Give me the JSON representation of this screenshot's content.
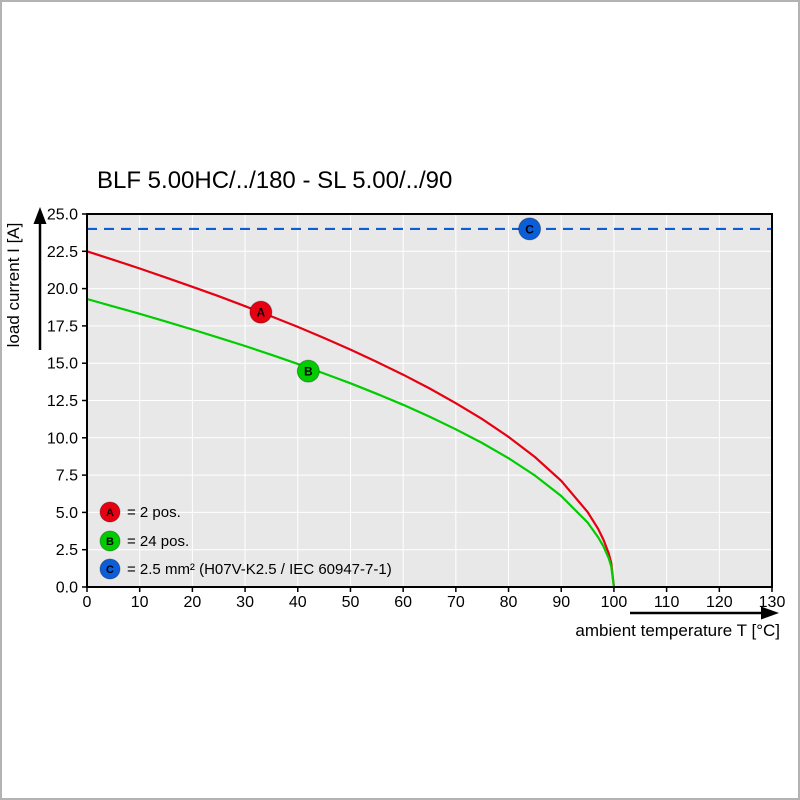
{
  "window": {
    "background": "#ffffff",
    "border_color": "#b3b3b3"
  },
  "chart_data": {
    "type": "line",
    "title": "BLF 5.00HC/../180 - SL 5.00/../90",
    "xlabel": "ambient temperature T [°C]",
    "ylabel": "load current I [A]",
    "xlim": [
      0,
      130
    ],
    "ylim": [
      0,
      25
    ],
    "x_ticks": [
      0,
      10,
      20,
      30,
      40,
      50,
      60,
      70,
      80,
      90,
      100,
      110,
      120,
      130
    ],
    "y_tick_values": [
      0,
      2.5,
      5,
      7.5,
      10,
      12.5,
      15,
      17.5,
      20,
      22.5,
      25
    ],
    "y_tick_labels": [
      "0.0",
      "2.5",
      "5.0",
      "7.5",
      "10.0",
      "12.5",
      "15.0",
      "17.5",
      "20.0",
      "22.5",
      "25.0"
    ],
    "grid": true,
    "plot_background": "#e8e8e8",
    "grid_color": "#ffffff",
    "axis_color": "#000000",
    "legend_position": "bottom-left-inside",
    "series": [
      {
        "id": "A",
        "legend_label": "= 2 pos.",
        "color": "#e60012",
        "style": "solid",
        "points": [
          [
            0,
            22.5
          ],
          [
            5,
            21.93
          ],
          [
            10,
            21.35
          ],
          [
            15,
            20.74
          ],
          [
            20,
            20.12
          ],
          [
            25,
            19.49
          ],
          [
            30,
            18.82
          ],
          [
            35,
            18.14
          ],
          [
            40,
            17.43
          ],
          [
            45,
            16.69
          ],
          [
            50,
            15.91
          ],
          [
            55,
            15.09
          ],
          [
            60,
            14.23
          ],
          [
            65,
            13.31
          ],
          [
            70,
            12.32
          ],
          [
            75,
            11.25
          ],
          [
            80,
            10.06
          ],
          [
            85,
            8.71
          ],
          [
            90,
            7.12
          ],
          [
            95,
            5.03
          ],
          [
            97,
            3.9
          ],
          [
            98,
            3.18
          ],
          [
            99,
            2.25
          ],
          [
            99.5,
            1.59
          ],
          [
            100,
            0
          ]
        ]
      },
      {
        "id": "B",
        "legend_label": "= 24 pos.",
        "color": "#00cc00",
        "style": "solid",
        "points": [
          [
            0,
            19.3
          ],
          [
            5,
            18.81
          ],
          [
            10,
            18.31
          ],
          [
            15,
            17.79
          ],
          [
            20,
            17.26
          ],
          [
            25,
            16.71
          ],
          [
            30,
            16.15
          ],
          [
            35,
            15.56
          ],
          [
            40,
            14.95
          ],
          [
            45,
            14.31
          ],
          [
            50,
            13.65
          ],
          [
            55,
            12.95
          ],
          [
            60,
            12.21
          ],
          [
            65,
            11.42
          ],
          [
            70,
            10.57
          ],
          [
            75,
            9.65
          ],
          [
            80,
            8.63
          ],
          [
            85,
            7.47
          ],
          [
            90,
            6.1
          ],
          [
            95,
            4.32
          ],
          [
            97,
            3.34
          ],
          [
            98,
            2.73
          ],
          [
            99,
            1.93
          ],
          [
            99.5,
            1.36
          ],
          [
            100,
            0
          ]
        ]
      },
      {
        "id": "C",
        "legend_label": "= 2.5 mm² (H07V-K2.5 / IEC 60947-7-1)",
        "color": "#0b5ed7",
        "style": "dashed",
        "constant_y": 24
      }
    ],
    "markers": [
      {
        "label": "A",
        "x": 33,
        "y": 18.42,
        "color": "#e60012"
      },
      {
        "label": "B",
        "x": 42,
        "y": 14.47,
        "color": "#00cc00"
      },
      {
        "label": "C",
        "x": 84,
        "y": 24,
        "color": "#0b5ed7"
      }
    ]
  }
}
